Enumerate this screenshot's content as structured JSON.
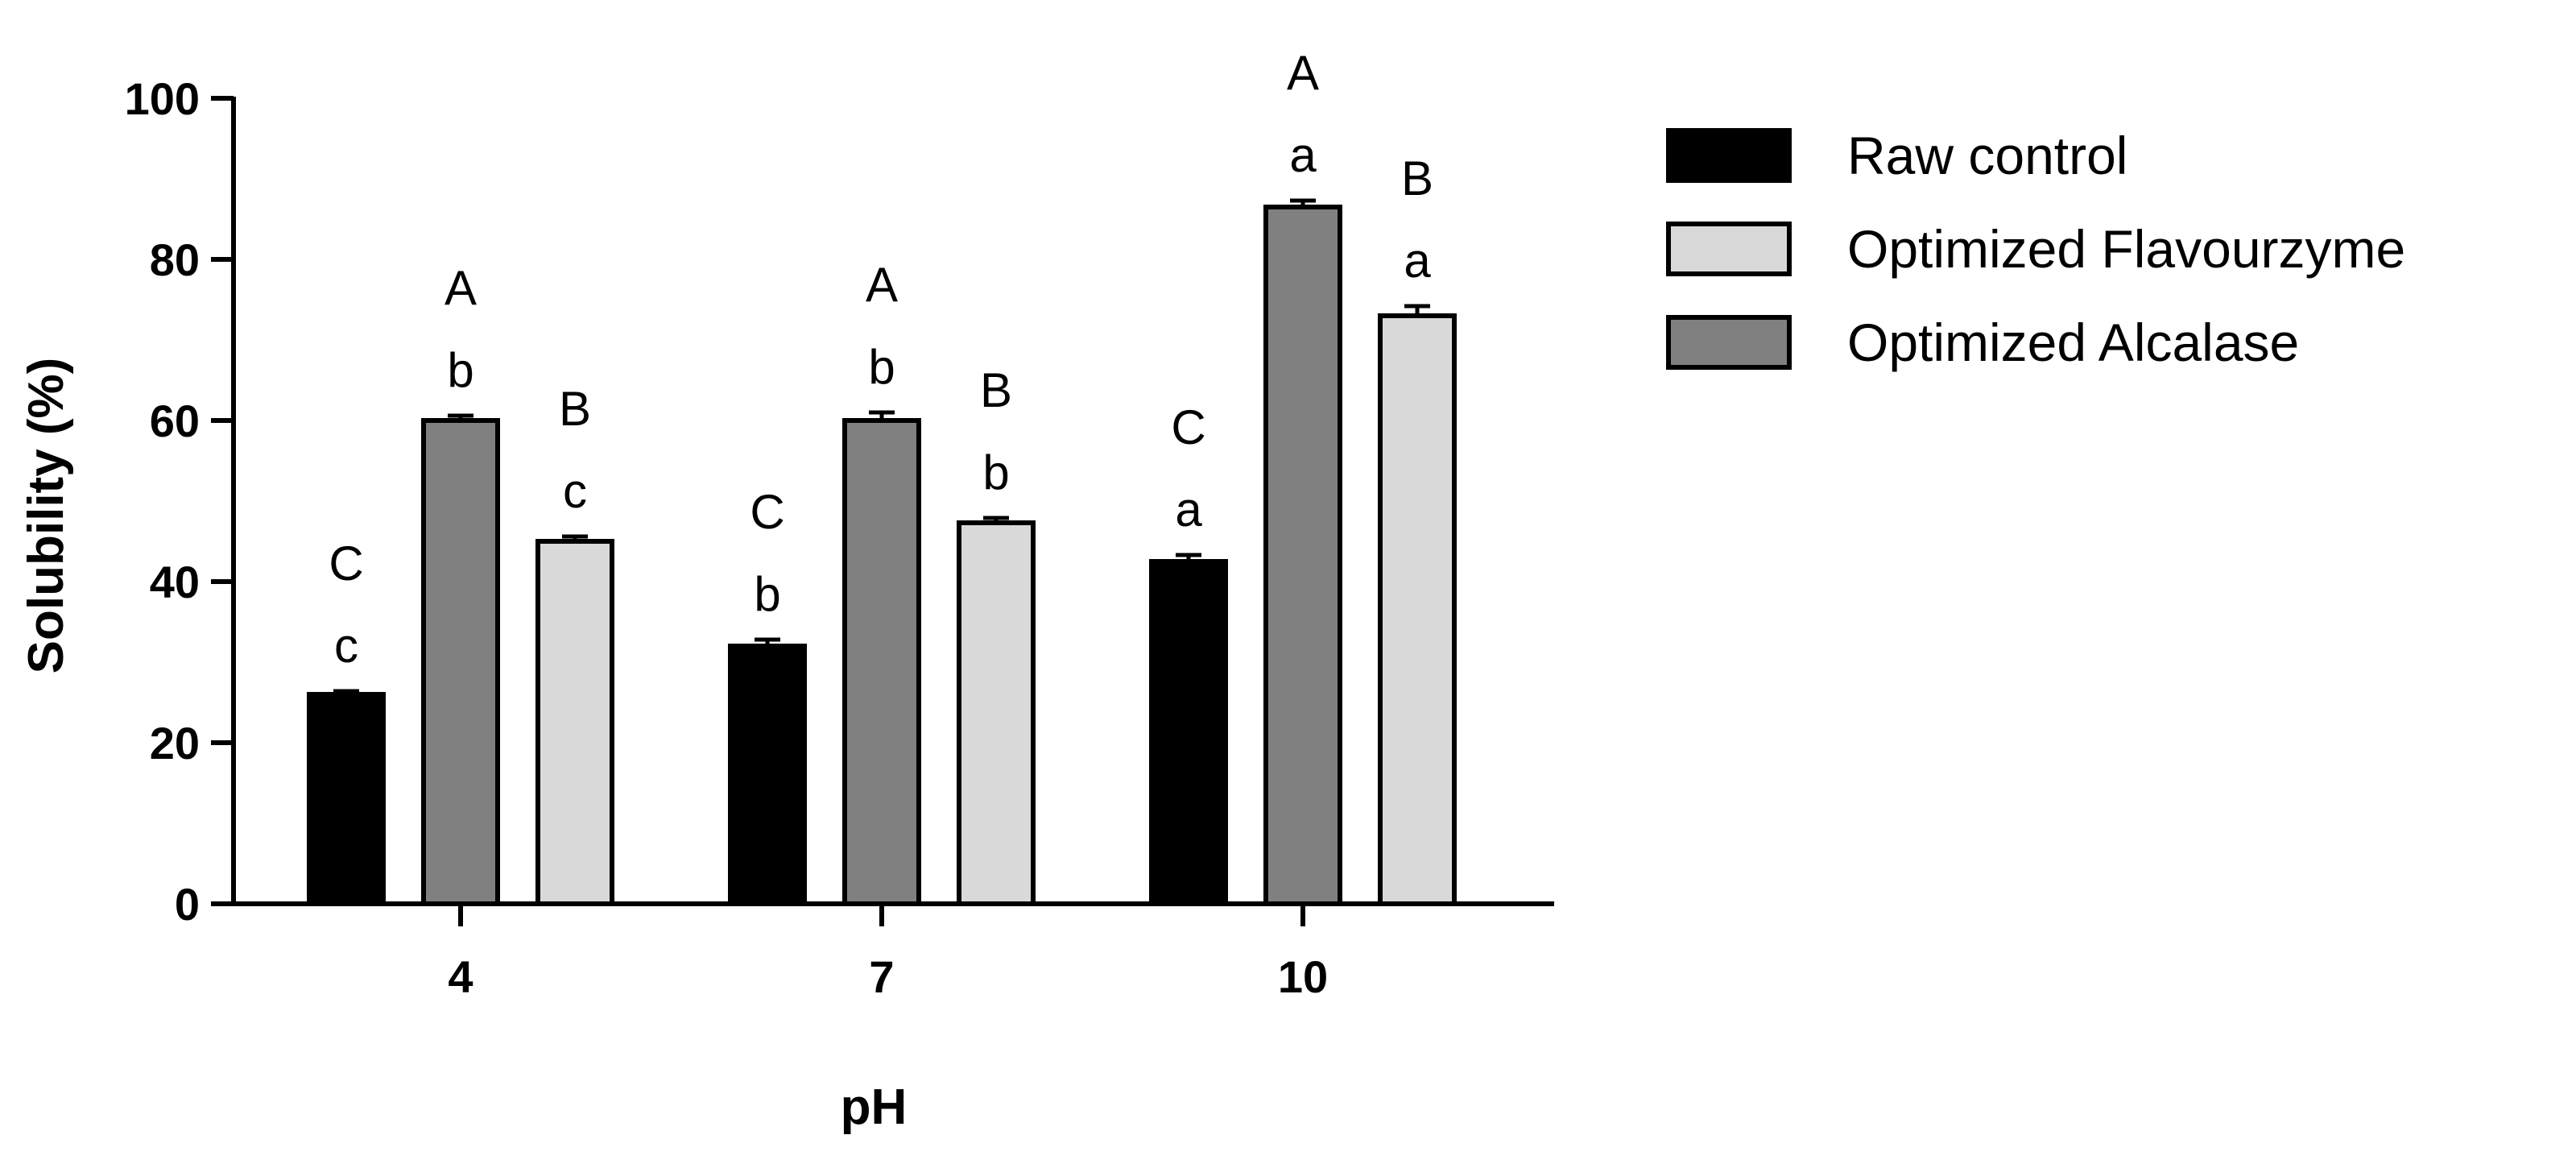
{
  "chart_data": {
    "type": "bar",
    "xlabel": "pH",
    "ylabel": "Solubility (%)",
    "ylim": [
      0,
      100
    ],
    "yticks": [
      0,
      20,
      40,
      60,
      80,
      100
    ],
    "categories": [
      "4",
      "7",
      "10"
    ],
    "series": [
      {
        "name": "Raw control",
        "color": "#000000",
        "values": [
          26,
          32,
          42.5
        ],
        "errors": [
          0.4,
          0.8,
          0.8
        ],
        "upper_letters": [
          "C",
          "C",
          "C"
        ],
        "lower_letters": [
          "c",
          "b",
          "a"
        ]
      },
      {
        "name": "Optimized Alcalase",
        "color": "#808080",
        "values": [
          60,
          60,
          86.5
        ],
        "errors": [
          0.6,
          1.0,
          0.8
        ],
        "upper_letters": [
          "A",
          "A",
          "A"
        ],
        "lower_letters": [
          "b",
          "b",
          "a"
        ]
      },
      {
        "name": "Optimized Flavourzyme",
        "color": "#d9d9d9",
        "values": [
          45,
          47.3,
          73
        ],
        "errors": [
          0.6,
          0.6,
          1.2
        ],
        "upper_letters": [
          "B",
          "B",
          "B"
        ],
        "lower_letters": [
          "c",
          "b",
          "a"
        ]
      }
    ],
    "legend": {
      "placement": "right",
      "entries": [
        {
          "label": "Raw control",
          "color": "#000000"
        },
        {
          "label": "Optimized Flavourzyme",
          "color": "#d9d9d9"
        },
        {
          "label": "Optimized Alcalase",
          "color": "#808080"
        }
      ]
    },
    "grid": false
  }
}
